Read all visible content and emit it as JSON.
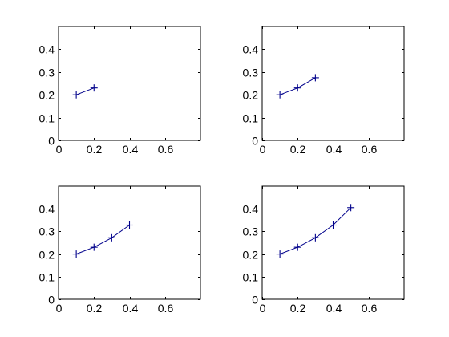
{
  "chart_data": [
    {
      "type": "line",
      "title": "",
      "xlabel": "",
      "ylabel": "",
      "xlim": [
        0,
        0.8
      ],
      "ylim": [
        0,
        0.5
      ],
      "xticks": [
        0,
        0.2,
        0.4,
        0.6
      ],
      "xtick_labels": [
        "0",
        "0.2",
        "0.4",
        "0.6"
      ],
      "yticks": [
        0,
        0.1,
        0.2,
        0.3,
        0.4
      ],
      "ytick_labels": [
        "0",
        "0.1",
        "0.2",
        "0.3",
        "0.4"
      ],
      "grid": false,
      "marker": "+",
      "color": "#00008B",
      "series": [
        {
          "x": [
            0.1,
            0.2
          ],
          "y": [
            0.2,
            0.23
          ]
        }
      ]
    },
    {
      "type": "line",
      "title": "",
      "xlabel": "",
      "ylabel": "",
      "xlim": [
        0,
        0.8
      ],
      "ylim": [
        0,
        0.5
      ],
      "xticks": [
        0,
        0.2,
        0.4,
        0.6
      ],
      "xtick_labels": [
        "0",
        "0.2",
        "0.4",
        "0.6"
      ],
      "yticks": [
        0,
        0.1,
        0.2,
        0.3,
        0.4
      ],
      "ytick_labels": [
        "0",
        "0.1",
        "0.2",
        "0.3",
        "0.4"
      ],
      "grid": false,
      "marker": "+",
      "color": "#00008B",
      "series": [
        {
          "x": [
            0.1,
            0.2,
            0.3
          ],
          "y": [
            0.2,
            0.23,
            0.275
          ]
        }
      ]
    },
    {
      "type": "line",
      "title": "",
      "xlabel": "",
      "ylabel": "",
      "xlim": [
        0,
        0.8
      ],
      "ylim": [
        0,
        0.5
      ],
      "xticks": [
        0,
        0.2,
        0.4,
        0.6
      ],
      "xtick_labels": [
        "0",
        "0.2",
        "0.4",
        "0.6"
      ],
      "yticks": [
        0,
        0.1,
        0.2,
        0.3,
        0.4
      ],
      "ytick_labels": [
        "0",
        "0.1",
        "0.2",
        "0.3",
        "0.4"
      ],
      "grid": false,
      "marker": "+",
      "color": "#00008B",
      "series": [
        {
          "x": [
            0.1,
            0.2,
            0.3,
            0.4
          ],
          "y": [
            0.2,
            0.23,
            0.272,
            0.328
          ]
        }
      ]
    },
    {
      "type": "line",
      "title": "",
      "xlabel": "",
      "ylabel": "",
      "xlim": [
        0,
        0.8
      ],
      "ylim": [
        0,
        0.5
      ],
      "xticks": [
        0,
        0.2,
        0.4,
        0.6
      ],
      "xtick_labels": [
        "0",
        "0.2",
        "0.4",
        "0.6"
      ],
      "yticks": [
        0,
        0.1,
        0.2,
        0.3,
        0.4
      ],
      "ytick_labels": [
        "0",
        "0.1",
        "0.2",
        "0.3",
        "0.4"
      ],
      "grid": false,
      "marker": "+",
      "color": "#00008B",
      "series": [
        {
          "x": [
            0.1,
            0.2,
            0.3,
            0.4,
            0.5
          ],
          "y": [
            0.2,
            0.23,
            0.272,
            0.328,
            0.405
          ]
        }
      ]
    }
  ]
}
